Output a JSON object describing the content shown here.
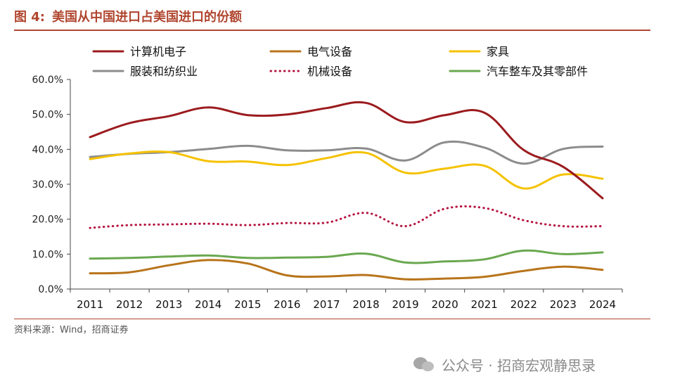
{
  "figure": {
    "number": "图 4:",
    "title": "美国从中国进口占美国进口的份额"
  },
  "source_note": "资料来源：Wind，招商证券",
  "watermark": {
    "icon": "wechat-icon",
    "text": "公众号 · 招商宏观静思录"
  },
  "chart_data": {
    "type": "line",
    "title": "美国从中国进口占美国进口的份额",
    "xlabel": "",
    "ylabel": "",
    "ylim": [
      0,
      60
    ],
    "ytick_values": [
      0,
      10,
      20,
      30,
      40,
      50,
      60
    ],
    "ytick_labels": [
      "0.0%",
      "10.0%",
      "20.0%",
      "30.0%",
      "40.0%",
      "50.0%",
      "60.0%"
    ],
    "grid": false,
    "legend_placement": "top",
    "categories": [
      "2011",
      "2012",
      "2013",
      "2014",
      "2015",
      "2016",
      "2017",
      "2018",
      "2019",
      "2020",
      "2021",
      "2022",
      "2023",
      "2024"
    ],
    "series": [
      {
        "name": "计算机电子",
        "color": "#9b1b1e",
        "style": "solid",
        "values": [
          43.5,
          47.5,
          49.5,
          52.0,
          49.8,
          50.0,
          51.8,
          53.3,
          47.8,
          49.8,
          50.5,
          39.8,
          35.0,
          26.0
        ]
      },
      {
        "name": "电气设备",
        "color": "#b8741a",
        "style": "solid",
        "values": [
          4.5,
          4.8,
          6.8,
          8.3,
          7.3,
          3.9,
          3.6,
          4.0,
          2.8,
          3.0,
          3.5,
          5.2,
          6.4,
          5.5
        ]
      },
      {
        "name": "家具",
        "color": "#f5c200",
        "style": "solid",
        "values": [
          37.2,
          38.8,
          39.2,
          36.6,
          36.5,
          35.5,
          37.5,
          39.0,
          33.3,
          34.5,
          35.3,
          28.8,
          32.8,
          31.6
        ]
      },
      {
        "name": "服装和纺织业",
        "color": "#8c8c8c",
        "style": "solid",
        "values": [
          37.8,
          38.7,
          39.2,
          40.1,
          41.0,
          39.7,
          39.7,
          40.2,
          36.8,
          42.0,
          40.5,
          35.9,
          40.1,
          40.8
        ]
      },
      {
        "name": "机械设备",
        "color": "#b5123f",
        "style": "dotted",
        "values": [
          17.5,
          18.3,
          18.5,
          18.7,
          18.3,
          18.9,
          19.0,
          21.8,
          18.0,
          23.0,
          23.2,
          19.7,
          18.0,
          18.0
        ]
      },
      {
        "name": "汽车整车及其零部件",
        "color": "#6aa84f",
        "style": "solid",
        "values": [
          8.7,
          8.9,
          9.3,
          9.6,
          8.9,
          9.0,
          9.2,
          10.1,
          7.6,
          7.9,
          8.5,
          11.0,
          10.0,
          10.5
        ]
      }
    ]
  }
}
